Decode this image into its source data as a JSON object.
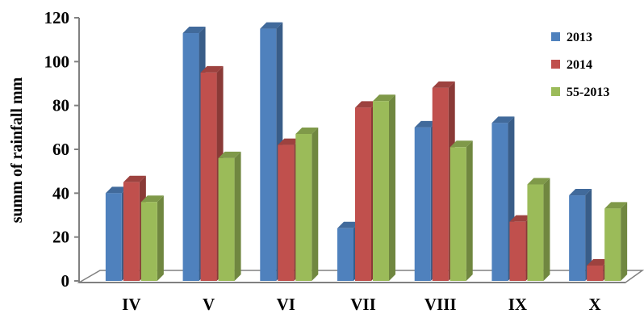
{
  "chart_data": {
    "type": "bar",
    "title": "",
    "xlabel": "",
    "ylabel": "summ of rainfall mm",
    "ylim": [
      0,
      120
    ],
    "yticks": [
      0,
      20,
      40,
      60,
      80,
      100,
      120
    ],
    "categories": [
      "IV",
      "V",
      "VI",
      "VII",
      "VIII",
      "IX",
      "X"
    ],
    "grid": false,
    "legend_position": "right",
    "series": [
      {
        "name": "2013",
        "color": "#4F81BD",
        "values": [
          40,
          113,
          115,
          24,
          70,
          72,
          39
        ]
      },
      {
        "name": "2014",
        "color": "#C0504D",
        "values": [
          45,
          95,
          62,
          79,
          88,
          27,
          7
        ]
      },
      {
        "name": "55-2013",
        "color": "#9BBB59",
        "values": [
          36,
          56,
          67,
          82,
          61,
          44,
          33
        ]
      }
    ]
  }
}
